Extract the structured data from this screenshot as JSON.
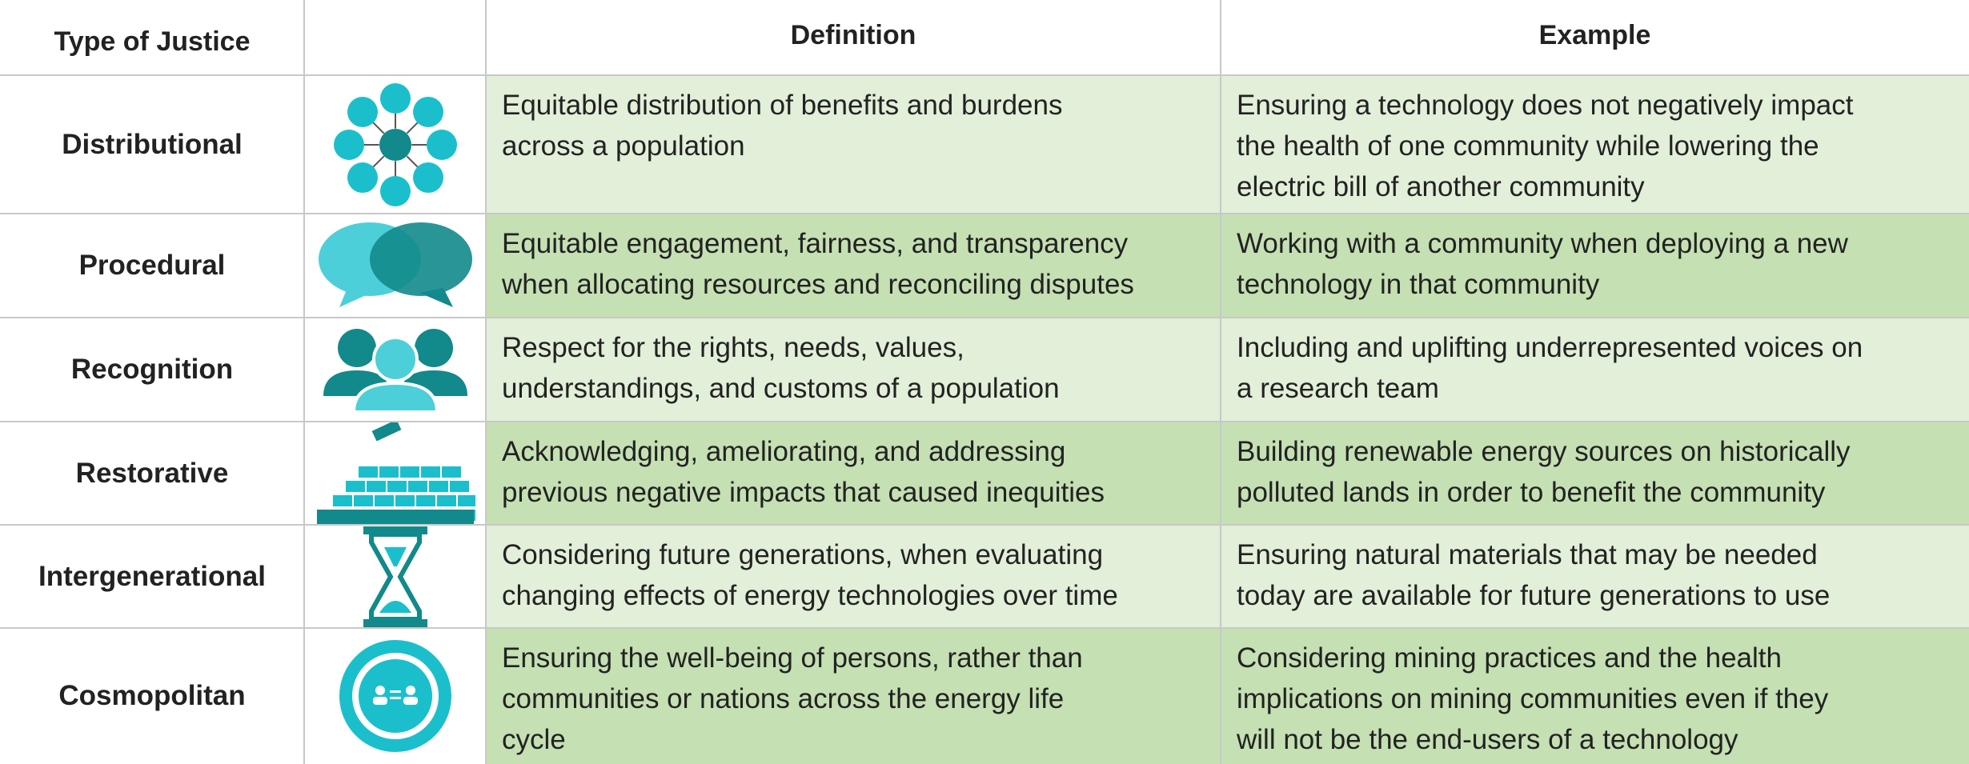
{
  "header": {
    "type": "Type of Justice",
    "definition": "Definition",
    "example": "Example"
  },
  "rows": [
    {
      "name": "Distributional",
      "definition": [
        "Equitable distribution of benefits and burdens",
        "across a population"
      ],
      "example": [
        "Ensuring a technology does not negatively impact",
        "the health of one community while lowering the",
        "electric bill of another community"
      ]
    },
    {
      "name": "Procedural",
      "definition": [
        "Equitable engagement, fairness, and transparency",
        "when allocating resources and reconciling disputes"
      ],
      "example": [
        "Working with a community when deploying a new",
        "technology in that community"
      ]
    },
    {
      "name": "Recognition",
      "definition": [
        "Respect for the rights, needs, values,",
        "understandings, and customs of a population"
      ],
      "example": [
        "Including and uplifting underrepresented voices on",
        "a research team"
      ]
    },
    {
      "name": "Restorative",
      "definition": [
        "Acknowledging, ameliorating, and addressing",
        "previous negative impacts that caused inequities"
      ],
      "example": [
        "Building renewable energy sources on historically",
        "polluted lands in order to benefit the community"
      ]
    },
    {
      "name": "Intergenerational",
      "definition": [
        "Considering future generations, when evaluating",
        "changing effects of energy technologies over time"
      ],
      "example": [
        "Ensuring natural materials that may be needed",
        "today are available for future generations to use"
      ]
    },
    {
      "name": "Cosmopolitan",
      "definition": [
        "Ensuring the well-being of persons, rather than",
        "communities or nations across the energy life",
        "cycle"
      ],
      "example": [
        "Considering mining practices and the health",
        "implications on mining communities even if they",
        "will not be the end-users of a technology"
      ]
    }
  ]
}
